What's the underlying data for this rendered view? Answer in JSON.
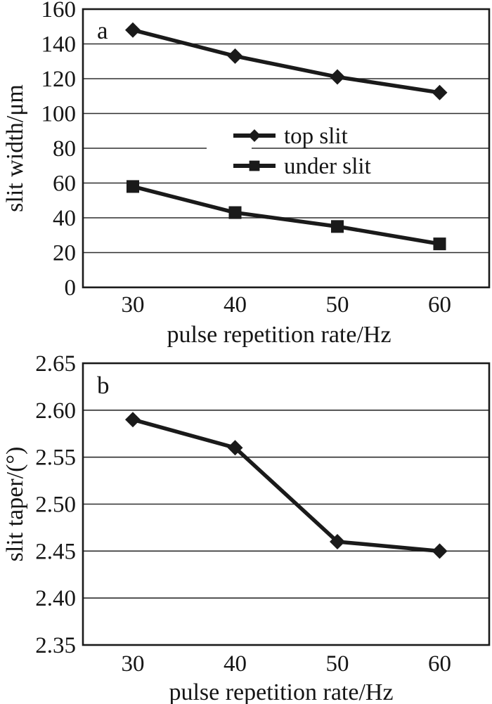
{
  "figure": {
    "background": "#ffffff"
  },
  "colors": {
    "ink": "#1a1a1a",
    "grid": "#2e2e2e",
    "background": "#ffffff"
  },
  "chart_data": [
    {
      "type": "line",
      "panel_label": "a",
      "x": [
        30,
        40,
        50,
        60
      ],
      "xticks": [
        "30",
        "40",
        "50",
        "60"
      ],
      "series": [
        {
          "name": "top slit",
          "marker": "diamond",
          "values": [
            148,
            133,
            121,
            112
          ]
        },
        {
          "name": "under slit",
          "marker": "square",
          "values": [
            58,
            43,
            35,
            25
          ]
        }
      ],
      "xlabel": "pulse repetition rate/Hz",
      "ylabel": "slit width/μm",
      "ylim": [
        0,
        160
      ],
      "yticks": [
        "0",
        "20",
        "40",
        "60",
        "80",
        "100",
        "120",
        "140",
        "160"
      ],
      "grid": true,
      "legend": {
        "show": true,
        "position": "inside-center"
      }
    },
    {
      "type": "line",
      "panel_label": "b",
      "x": [
        30,
        40,
        50,
        60
      ],
      "xticks": [
        "30",
        "40",
        "50",
        "60"
      ],
      "series": [
        {
          "name": "slit taper",
          "marker": "diamond",
          "values": [
            2.59,
            2.56,
            2.46,
            2.45
          ]
        }
      ],
      "xlabel": "pulse repetition rate/Hz",
      "ylabel": "slit taper/(°)",
      "ylim": [
        2.35,
        2.65
      ],
      "yticks": [
        "2.35",
        "2.40",
        "2.45",
        "2.50",
        "2.55",
        "2.60",
        "2.65"
      ],
      "grid": true,
      "legend": {
        "show": false
      }
    }
  ]
}
